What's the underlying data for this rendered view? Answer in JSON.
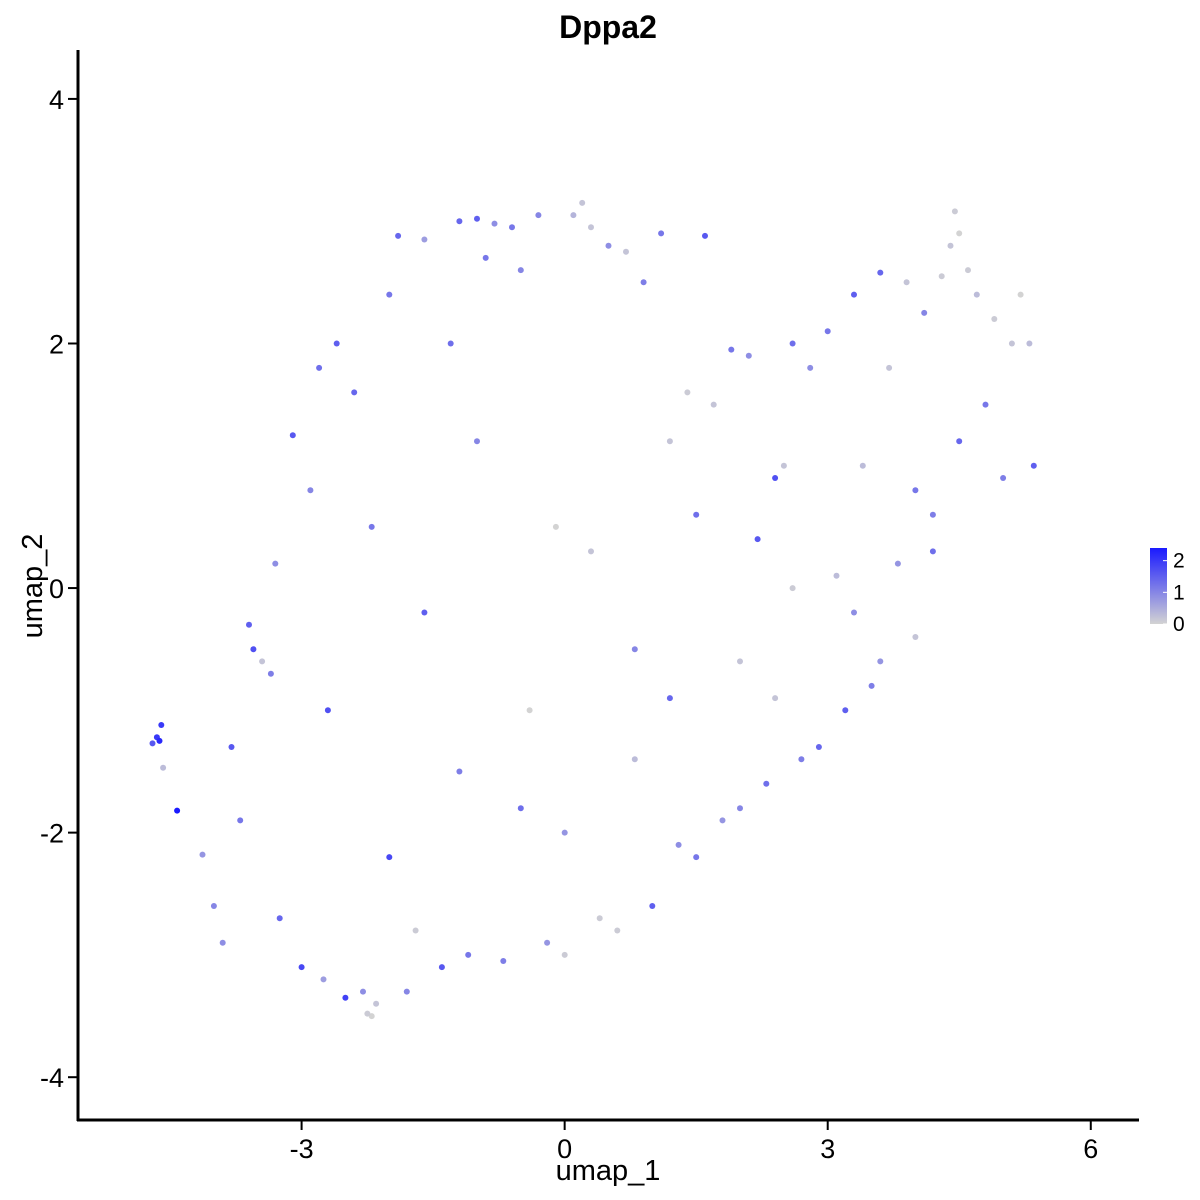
{
  "chart_data": {
    "type": "scatter",
    "title": "Dppa2",
    "xlabel": "umap_1",
    "ylabel": "umap_2",
    "xlim": [
      -5.55,
      6.55
    ],
    "ylim": [
      -4.35,
      4.4
    ],
    "x_ticks": [
      -3,
      0,
      3,
      6
    ],
    "x_tick_labels": [
      "-3",
      "0",
      "3",
      "6"
    ],
    "y_ticks": [
      -4,
      -2,
      0,
      2,
      4
    ],
    "y_tick_labels": [
      "-4",
      "-2",
      "0",
      "2",
      "4"
    ],
    "grid": false,
    "legend": {
      "placement": "right",
      "type": "colorbar",
      "low_color": "#d3d3d3",
      "high_color": "#1a1aff",
      "min": 0,
      "max": 2.4,
      "ticks": [
        0,
        1,
        2
      ],
      "tick_labels": [
        "0",
        "1",
        "2"
      ]
    },
    "series": [
      {
        "points": [
          [
            -4.7,
            -1.27,
            1.6
          ],
          [
            -4.65,
            -1.22,
            2.0
          ],
          [
            -4.62,
            -1.25,
            2.2
          ],
          [
            -4.6,
            -1.12,
            2.0
          ],
          [
            -4.58,
            -1.47,
            0.3
          ],
          [
            -4.42,
            -1.82,
            2.4
          ],
          [
            -4.13,
            -2.18,
            0.8
          ],
          [
            -4.0,
            -2.6,
            1.0
          ],
          [
            -3.9,
            -2.9,
            0.9
          ],
          [
            -3.7,
            -1.9,
            1.2
          ],
          [
            -3.6,
            -0.3,
            1.5
          ],
          [
            -3.55,
            -0.5,
            1.7
          ],
          [
            -3.45,
            -0.6,
            0.2
          ],
          [
            -3.35,
            -0.7,
            1.1
          ],
          [
            -3.25,
            -2.7,
            1.4
          ],
          [
            -3.1,
            1.25,
            1.6
          ],
          [
            -3.0,
            -3.1,
            1.8
          ],
          [
            -2.9,
            0.8,
            1.0
          ],
          [
            -2.8,
            1.8,
            1.3
          ],
          [
            -2.75,
            -3.2,
            0.7
          ],
          [
            -2.6,
            2.0,
            1.5
          ],
          [
            -2.5,
            -3.35,
            1.9
          ],
          [
            -2.4,
            1.6,
            1.4
          ],
          [
            -2.3,
            -3.3,
            0.9
          ],
          [
            -2.25,
            -3.48,
            0.1
          ],
          [
            -2.2,
            -3.5,
            0.0
          ],
          [
            -2.15,
            -3.4,
            0.2
          ],
          [
            -2.0,
            2.4,
            1.2
          ],
          [
            -1.9,
            2.88,
            1.4
          ],
          [
            -1.8,
            -3.3,
            1.0
          ],
          [
            -1.7,
            -2.8,
            0.1
          ],
          [
            -1.6,
            2.85,
            0.7
          ],
          [
            -1.4,
            -3.1,
            1.6
          ],
          [
            -1.3,
            2.0,
            1.3
          ],
          [
            -1.2,
            3.0,
            1.4
          ],
          [
            -1.1,
            -3.0,
            1.2
          ],
          [
            -1.0,
            3.02,
            1.5
          ],
          [
            -0.9,
            2.7,
            1.2
          ],
          [
            -0.8,
            2.98,
            0.9
          ],
          [
            -0.7,
            -3.05,
            1.1
          ],
          [
            -0.6,
            2.95,
            1.2
          ],
          [
            -0.5,
            2.6,
            1.0
          ],
          [
            -0.4,
            -1.0,
            0.0
          ],
          [
            -0.3,
            3.05,
            1.0
          ],
          [
            -0.2,
            -2.9,
            0.8
          ],
          [
            -0.1,
            0.5,
            0.0
          ],
          [
            0.0,
            -3.0,
            0.1
          ],
          [
            0.1,
            3.05,
            0.4
          ],
          [
            0.2,
            3.15,
            0.2
          ],
          [
            0.3,
            2.95,
            0.2
          ],
          [
            0.4,
            -2.7,
            0.1
          ],
          [
            0.5,
            2.8,
            0.9
          ],
          [
            0.6,
            -2.8,
            0.1
          ],
          [
            0.7,
            2.75,
            0.2
          ],
          [
            0.8,
            -1.4,
            0.3
          ],
          [
            0.9,
            2.5,
            1.1
          ],
          [
            1.0,
            -2.6,
            1.5
          ],
          [
            1.1,
            2.9,
            1.2
          ],
          [
            1.2,
            1.2,
            0.2
          ],
          [
            1.3,
            -2.1,
            0.9
          ],
          [
            1.4,
            1.6,
            0.1
          ],
          [
            1.5,
            -2.2,
            1.2
          ],
          [
            1.6,
            2.88,
            1.6
          ],
          [
            1.7,
            1.5,
            0.2
          ],
          [
            1.8,
            -1.9,
            0.8
          ],
          [
            1.9,
            1.95,
            1.2
          ],
          [
            2.0,
            -1.8,
            1.0
          ],
          [
            2.1,
            1.9,
            0.9
          ],
          [
            2.2,
            0.4,
            1.6
          ],
          [
            2.3,
            -1.6,
            1.3
          ],
          [
            2.4,
            0.9,
            1.7
          ],
          [
            2.5,
            1.0,
            0.2
          ],
          [
            2.6,
            2.0,
            1.3
          ],
          [
            2.7,
            -1.4,
            1.1
          ],
          [
            2.8,
            1.8,
            0.9
          ],
          [
            2.9,
            -1.3,
            1.4
          ],
          [
            3.0,
            2.1,
            1.2
          ],
          [
            3.1,
            0.1,
            0.3
          ],
          [
            3.2,
            -1.0,
            1.5
          ],
          [
            3.3,
            2.4,
            1.5
          ],
          [
            3.4,
            1.0,
            0.3
          ],
          [
            3.5,
            -0.8,
            1.1
          ],
          [
            3.6,
            2.58,
            1.4
          ],
          [
            3.7,
            1.8,
            0.2
          ],
          [
            3.8,
            0.2,
            0.8
          ],
          [
            3.9,
            2.5,
            0.2
          ],
          [
            4.0,
            0.8,
            1.2
          ],
          [
            4.1,
            2.25,
            1.0
          ],
          [
            4.2,
            0.3,
            1.3
          ],
          [
            4.3,
            2.55,
            0.1
          ],
          [
            4.4,
            2.8,
            0.2
          ],
          [
            4.45,
            3.08,
            0.1
          ],
          [
            4.5,
            2.9,
            0.0
          ],
          [
            4.6,
            2.6,
            0.1
          ],
          [
            4.7,
            2.4,
            0.3
          ],
          [
            4.8,
            1.5,
            1.2
          ],
          [
            4.9,
            2.2,
            0.1
          ],
          [
            5.0,
            0.9,
            1.1
          ],
          [
            5.1,
            2.0,
            0.2
          ],
          [
            5.2,
            2.4,
            0.0
          ],
          [
            5.3,
            2.0,
            0.3
          ],
          [
            5.35,
            1.0,
            1.5
          ],
          [
            -3.3,
            0.2,
            0.9
          ],
          [
            -2.7,
            -1.0,
            1.7
          ],
          [
            -2.2,
            0.5,
            1.2
          ],
          [
            -1.6,
            -0.2,
            1.5
          ],
          [
            -1.0,
            1.2,
            1.0
          ],
          [
            -0.5,
            -1.8,
            1.3
          ],
          [
            0.3,
            0.3,
            0.2
          ],
          [
            0.8,
            -0.5,
            1.0
          ],
          [
            1.5,
            0.6,
            1.3
          ],
          [
            2.0,
            -0.6,
            0.2
          ],
          [
            2.6,
            0.0,
            0.1
          ],
          [
            3.3,
            -0.2,
            0.9
          ],
          [
            4.0,
            -0.4,
            0.2
          ],
          [
            4.5,
            1.2,
            1.4
          ],
          [
            -3.8,
            -1.3,
            1.6
          ],
          [
            -2.0,
            -2.2,
            1.8
          ],
          [
            -1.2,
            -1.5,
            1.1
          ],
          [
            0.0,
            -2.0,
            0.8
          ],
          [
            1.2,
            -0.9,
            1.4
          ],
          [
            2.4,
            -0.9,
            0.2
          ],
          [
            3.6,
            -0.6,
            0.8
          ],
          [
            4.2,
            0.6,
            1.1
          ]
        ]
      }
    ]
  }
}
